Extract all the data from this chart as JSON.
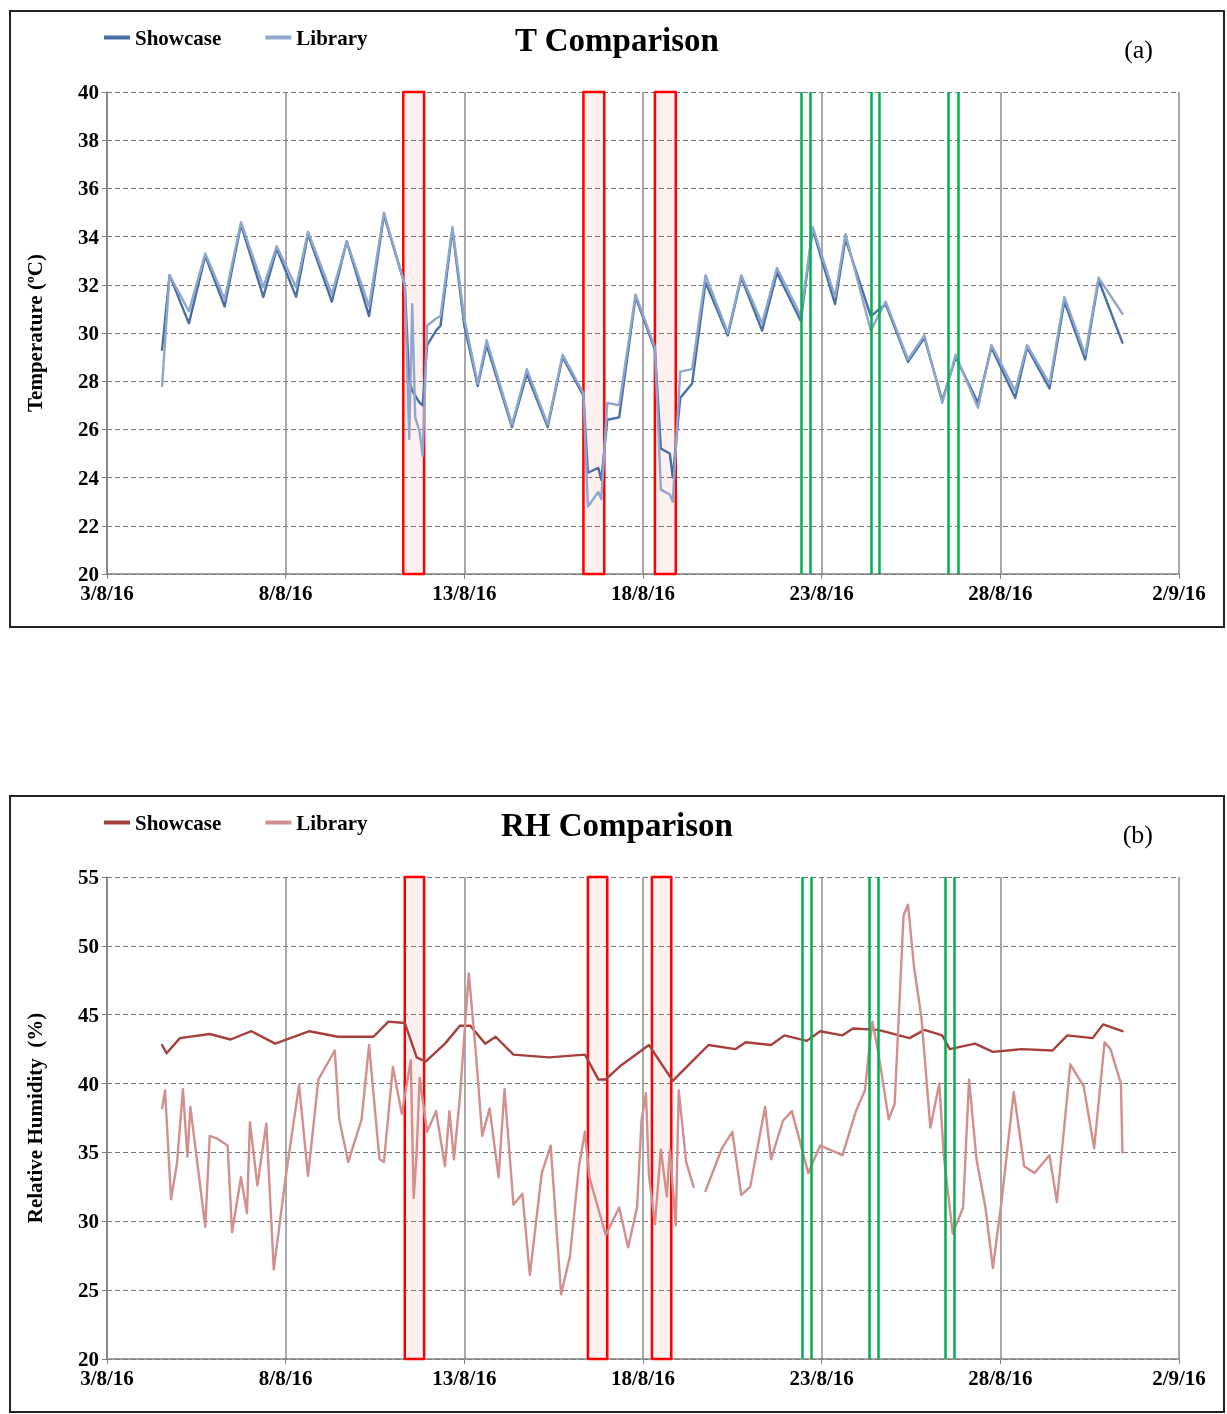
{
  "chart_data": [
    {
      "type": "line",
      "title": "T Comparison",
      "ylabel": "Temperature (ºC)",
      "annotations": [
        "(a)"
      ],
      "legend": "top left",
      "grid": true,
      "marker": "none",
      "x": [
        "--08-04T13:00",
        "--08-04T18:00",
        "--08-05T07:00",
        "--08-05T18:00",
        "--08-06T07:00",
        "--08-06T18:00",
        "--08-07T09:00",
        "--08-07T18:00",
        "--08-08T07:00",
        "--08-08T15:00",
        "--08-09T07:00",
        "--08-09T17:00",
        "--08-10T08:00",
        "--08-10T18:00",
        "--08-11T08:00",
        "--08-11T11:00",
        "--08-11T13:00",
        "--08-11T15:00",
        "--08-11T18:00",
        "--08-11T20:00",
        "--08-11T23:00",
        "--08-12T05:00",
        "--08-12T08:00",
        "--08-12T16:00",
        "--08-13T00:00",
        "--08-13T09:00",
        "--08-13T15:00",
        "--08-14T08:00",
        "--08-14T18:00",
        "--08-15T08:00",
        "--08-15T18:00",
        "--08-16T08:00",
        "--08-16T11:00",
        "--08-16T18:00",
        "--08-16T20:00",
        "--08-17T00:00",
        "--08-17T08:00",
        "--08-17T19:00",
        "--08-18T08:00",
        "--08-18T12:00",
        "--08-18T18:00",
        "--08-18T20:00",
        "--08-19T01:00",
        "--08-19T09:00",
        "--08-19T18:00",
        "--08-20T09:00",
        "--08-20T18:00",
        "--08-21T08:00",
        "--08-21T18:00",
        "--08-22T10:00",
        "--08-22T18:00",
        "--08-23T09:00",
        "--08-23T16:00",
        "--08-24T09:00",
        "--08-24T19:00",
        "--08-25T10:00",
        "--08-25T21:00",
        "--08-26T09:00",
        "--08-26T18:00",
        "--08-27T09:00",
        "--08-27T18:00",
        "--08-28T10:00",
        "--08-28T18:00",
        "--08-29T09:00",
        "--08-29T19:00",
        "--08-30T09:00",
        "--08-30T18:00",
        "--08-31T10:00"
      ],
      "series": [
        {
          "name": "Showcase",
          "color": "#4a6fa5",
          "values": [
            29.3,
            32.4,
            30.4,
            33.2,
            31.1,
            34.5,
            31.5,
            33.5,
            31.5,
            34.1,
            31.3,
            33.8,
            30.7,
            34.9,
            32.0,
            28.0,
            27.6,
            27.4,
            27.1,
            27.0,
            29.5,
            30.1,
            30.3,
            34.3,
            30.3,
            27.8,
            29.5,
            26.1,
            28.3,
            26.1,
            29.0,
            27.4,
            24.2,
            24.4,
            23.9,
            26.4,
            26.5,
            31.5,
            29.3,
            25.2,
            25.0,
            24.0,
            27.3,
            27.9,
            32.1,
            29.9,
            32.3,
            30.1,
            32.5,
            30.5,
            34.3,
            31.2,
            33.9,
            30.7,
            31.2,
            28.8,
            29.8,
            27.2,
            29.0,
            27.1,
            29.4,
            27.3,
            29.4,
            27.7,
            31.3,
            28.9,
            32.2,
            29.6
          ]
        },
        {
          "name": "Library",
          "color": "#8fa7cc",
          "values": [
            27.8,
            32.4,
            30.9,
            33.3,
            31.4,
            34.6,
            31.9,
            33.6,
            31.9,
            34.2,
            31.6,
            33.8,
            31.1,
            35.0,
            32.0,
            25.6,
            31.2,
            26.5,
            25.9,
            24.9,
            30.3,
            30.6,
            30.7,
            34.4,
            30.6,
            27.9,
            29.7,
            26.2,
            28.5,
            26.2,
            29.1,
            27.5,
            22.8,
            23.4,
            23.1,
            27.1,
            27.0,
            31.6,
            29.4,
            23.5,
            23.3,
            23.0,
            28.4,
            28.5,
            32.4,
            30.0,
            32.4,
            30.4,
            32.7,
            30.7,
            34.4,
            31.5,
            34.1,
            30.1,
            31.3,
            28.9,
            29.9,
            27.1,
            29.1,
            26.9,
            29.5,
            27.6,
            29.5,
            27.9,
            31.5,
            29.1,
            32.3,
            30.8
          ]
        }
      ],
      "xlim": [
        "--08-03",
        "--09-02"
      ],
      "xticks": [
        {
          "value": "--08-03",
          "label": "3/8/16"
        },
        {
          "value": "--08-08",
          "label": "8/8/16"
        },
        {
          "value": "--08-13",
          "label": "13/8/16"
        },
        {
          "value": "--08-18",
          "label": "18/8/16"
        },
        {
          "value": "--08-23",
          "label": "23/8/16"
        },
        {
          "value": "--08-28",
          "label": "28/8/16"
        },
        {
          "value": "--09-02",
          "label": "2/9/16"
        }
      ],
      "ylim": [
        20,
        40
      ],
      "yticks": [
        20,
        22,
        24,
        26,
        28,
        30,
        32,
        34,
        36,
        38,
        40
      ],
      "bands": [
        {
          "axis": "x",
          "from": "--08-11T07:00",
          "to": "--08-11T21:00",
          "color": "#ff0000"
        },
        {
          "axis": "x",
          "from": "--08-16T08:00",
          "to": "--08-16T22:00",
          "color": "#ff0000"
        },
        {
          "axis": "x",
          "from": "--08-18T08:00",
          "to": "--08-18T22:00",
          "color": "#ff0000"
        }
      ],
      "ref_lines": [
        {
          "axis": "x",
          "value": "--08-22T10:00",
          "color": "#00b050"
        },
        {
          "axis": "x",
          "value": "--08-22T16:00",
          "color": "#00b050"
        },
        {
          "axis": "x",
          "value": "--08-24T09:00",
          "color": "#00b050"
        },
        {
          "axis": "x",
          "value": "--08-24T15:00",
          "color": "#00b050"
        },
        {
          "axis": "x",
          "value": "--08-26T13:00",
          "color": "#00b050"
        },
        {
          "axis": "x",
          "value": "--08-26T20:00",
          "color": "#00b050"
        }
      ]
    },
    {
      "type": "line",
      "title": "RH Comparison",
      "ylabel": "Relative Humidity  (%)",
      "annotations": [
        "(b)"
      ],
      "legend": "top left",
      "grid": true,
      "marker": "none",
      "series": [
        {
          "name": "Showcase",
          "color": "#a5403c",
          "x": [
            "--08-04T13:00",
            "--08-04T16:00",
            "--08-05T01:00",
            "--08-05T21:00",
            "--08-06T11:00",
            "--08-07T01:00",
            "--08-07T17:00",
            "--08-08T16:00",
            "--08-09T11:00",
            "--08-10T11:00",
            "--08-10T21:00",
            "--08-11T08:00",
            "--08-11T16:00",
            "--08-11T22:00",
            "--08-12T11:00",
            "--08-12T21:00",
            "--08-13T04:00",
            "--08-13T14:00",
            "--08-13T21:00",
            "--08-14T09:00",
            "--08-15T09:00",
            "--08-16T09:00",
            "--08-16T18:00",
            "--08-16T23:00",
            "--08-17T09:00",
            "--08-18T04:00",
            "--08-18T20:00",
            "--08-19T08:00",
            "--08-19T20:00",
            "--08-20T14:00",
            "--08-20T21:00",
            "--08-21T14:00",
            "--08-21T23:00",
            "--08-22T14:00",
            "--08-22T23:00",
            "--08-23T14:00",
            "--08-23T21:00",
            "--08-24T14:00",
            "--08-25T11:00",
            "--08-25T21:00",
            "--08-26T09:00",
            "--08-26T14:00",
            "--08-27T07:00",
            "--08-27T19:00",
            "--08-28T14:00",
            "--08-29T11:00",
            "--08-29T21:00",
            "--08-30T14:00",
            "--08-30T21:00",
            "--08-31T10:00"
          ],
          "values": [
            42.8,
            42.2,
            43.3,
            43.6,
            43.2,
            43.8,
            42.9,
            43.8,
            43.4,
            43.4,
            44.5,
            44.4,
            41.9,
            41.6,
            42.9,
            44.2,
            44.2,
            42.9,
            43.4,
            42.1,
            41.9,
            42.1,
            40.3,
            40.3,
            41.3,
            42.8,
            40.2,
            41.5,
            42.8,
            42.5,
            43.0,
            42.8,
            43.5,
            43.1,
            43.8,
            43.5,
            44.0,
            43.9,
            43.3,
            43.9,
            43.5,
            42.5,
            42.9,
            42.3,
            42.5,
            42.4,
            43.5,
            43.3,
            44.3,
            43.8
          ]
        },
        {
          "name": "Library",
          "color": "#d18f8e",
          "x": [
            "--08-04T13:00",
            "--08-04T15:00",
            "--08-04T19:00",
            "--08-04T23:00",
            "--08-05T03:00",
            "--08-05T06:00",
            "--08-05T08:00",
            "--08-05T18:00",
            "--08-05T21:00",
            "--08-06T02:00",
            "--08-06T09:00",
            "--08-06T12:00",
            "--08-06T18:00",
            "--08-06T22:00",
            "--08-07T00:00",
            "--08-07T05:00",
            "--08-07T11:00",
            "--08-07T16:00",
            "--08-08T00:00",
            "--08-08T09:00",
            "--08-08T15:00",
            "--08-08T22:00",
            "--08-09T09:00",
            "--08-09T12:00",
            "--08-09T18:00",
            "--08-10T03:00",
            "--08-10T08:00",
            "--08-10T15:00",
            "--08-10T18:00",
            "--08-11T00:00",
            "--08-11T06:00",
            "--08-11T12:00",
            "--08-11T14:00",
            "--08-11T16:00",
            "--08-11T18:00",
            "--08-11T23:00",
            "--08-12T05:00",
            "--08-12T11:00",
            "--08-12T14:00",
            "--08-12T17:00",
            "--08-12T21:00",
            "--08-13T03:00",
            "--08-13T08:00",
            "--08-13T12:00",
            "--08-13T17:00",
            "--08-13T23:00",
            "--08-14T03:00",
            "--08-14T09:00",
            "--08-14T15:00",
            "--08-14T20:00",
            "--08-15T04:00",
            "--08-15T10:00",
            "--08-15T17:00",
            "--08-15T23:00",
            "--08-16T05:00",
            "--08-16T09:00",
            "--08-16T12:00",
            "--08-16T23:00",
            "--08-17T08:00",
            "--08-17T14:00",
            "--08-17T20:00",
            "--08-17T23:00",
            "--08-18T02:00",
            "--08-18T04:00",
            "--08-18T08:00",
            "--08-18T12:00",
            "--08-18T16:00",
            "--08-18T18:00",
            "--08-18T22:00",
            "--08-19T00:00",
            "--08-19T05:00",
            "--08-19T10:00",
            "--08-19T14:00",
            "--08-19T18:00",
            "--08-20T05:00",
            "--08-20T12:00",
            "--08-20T18:00",
            "--08-21T00:00",
            "--08-21T10:00",
            "--08-21T14:00",
            "--08-21T22:00",
            "--08-22T04:00",
            "--08-22T15:00",
            "--08-22T23:00",
            "--08-23T14:00",
            "--08-23T23:00",
            "--08-24T05:00",
            "--08-24T10:00",
            "--08-24T14:00",
            "--08-24T21:00",
            "--08-25T01:00",
            "--08-25T07:00",
            "--08-25T10:00",
            "--08-25T14:00",
            "--08-25T19:00",
            "--08-26T01:00",
            "--08-26T07:00",
            "--08-26T10:00",
            "--08-26T16:00",
            "--08-26T23:00",
            "--08-27T03:00",
            "--08-27T08:00",
            "--08-27T14:00",
            "--08-27T19:00",
            "--08-28T01:00",
            "--08-28T09:00",
            "--08-28T16:00",
            "--08-28T23:00",
            "--08-29T09:00",
            "--08-29T14:00",
            "--08-29T23:00",
            "--08-30T08:00",
            "--08-30T15:00",
            "--08-30T22:00",
            "--08-31T02:00",
            "--08-31T09:00",
            "--08-31T10:00"
          ],
          "values": [
            38.2,
            39.5,
            31.6,
            34.2,
            39.6,
            34.7,
            38.3,
            29.6,
            36.2,
            36.0,
            35.5,
            29.2,
            33.2,
            30.6,
            37.2,
            32.6,
            37.1,
            26.5,
            33.2,
            39.9,
            33.3,
            40.3,
            42.4,
            37.4,
            34.3,
            37.4,
            42.8,
            34.5,
            34.3,
            41.2,
            37.8,
            41.7,
            31.7,
            35.0,
            40.4,
            36.5,
            38.0,
            34.0,
            38.0,
            34.5,
            39.0,
            48.0,
            41.9,
            36.2,
            38.2,
            33.2,
            39.6,
            31.2,
            32.0,
            26.1,
            33.5,
            35.5,
            24.7,
            27.5,
            34.0,
            36.5,
            33.2,
            29.0,
            31.0,
            28.1,
            31.0,
            37.3,
            39.3,
            33.3,
            29.8,
            35.2,
            31.8,
            35.2,
            29.7,
            39.5,
            34.3,
            32.5,
            null,
            32.2,
            35.3,
            36.5,
            31.9,
            32.5,
            38.3,
            34.5,
            37.3,
            38.0,
            33.5,
            35.5,
            34.8,
            38.0,
            39.5,
            44.5,
            42.3,
            37.4,
            38.5,
            52.2,
            53.0,
            48.5,
            44.8,
            36.8,
            40.0,
            34.8,
            29.1,
            31.0,
            40.3,
            34.5,
            31.0,
            26.6,
            31.6,
            39.4,
            34.0,
            33.5,
            34.8,
            31.4,
            41.4,
            39.8,
            35.3,
            43.0,
            42.5,
            40.0,
            35.0
          ]
        }
      ],
      "xlim": [
        "--08-03",
        "--09-02"
      ],
      "xticks": [
        {
          "value": "--08-03",
          "label": "3/8/16"
        },
        {
          "value": "--08-08",
          "label": "8/8/16"
        },
        {
          "value": "--08-13",
          "label": "13/8/16"
        },
        {
          "value": "--08-18",
          "label": "18/8/16"
        },
        {
          "value": "--08-23",
          "label": "23/8/16"
        },
        {
          "value": "--08-28",
          "label": "28/8/16"
        },
        {
          "value": "--09-02",
          "label": "2/9/16"
        }
      ],
      "ylim": [
        20,
        55
      ],
      "yticks": [
        20,
        25,
        30,
        35,
        40,
        45,
        50,
        55
      ],
      "bands": [
        {
          "axis": "x",
          "from": "--08-11T08:00",
          "to": "--08-11T21:00",
          "color": "#ff0000"
        },
        {
          "axis": "x",
          "from": "--08-16T11:00",
          "to": "--08-17T00:00",
          "color": "#ff0000"
        },
        {
          "axis": "x",
          "from": "--08-18T06:00",
          "to": "--08-18T19:00",
          "color": "#ff0000"
        }
      ],
      "ref_lines": [
        {
          "axis": "x",
          "value": "--08-22T11:00",
          "color": "#00b050"
        },
        {
          "axis": "x",
          "value": "--08-22T17:00",
          "color": "#00b050"
        },
        {
          "axis": "x",
          "value": "--08-24T08:00",
          "color": "#00b050"
        },
        {
          "axis": "x",
          "value": "--08-24T14:00",
          "color": "#00b050"
        },
        {
          "axis": "x",
          "value": "--08-26T11:00",
          "color": "#00b050"
        },
        {
          "axis": "x",
          "value": "--08-26T17:00",
          "color": "#00b050"
        }
      ]
    }
  ]
}
